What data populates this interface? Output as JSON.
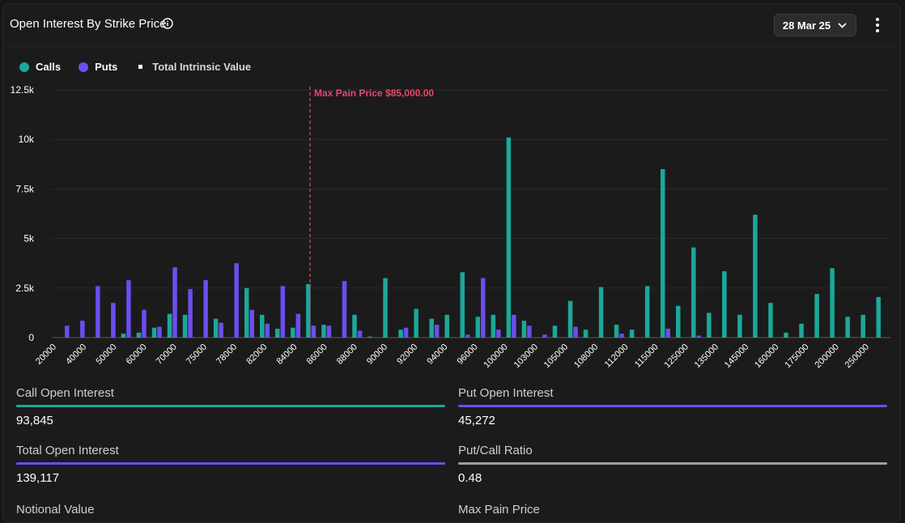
{
  "header": {
    "title": "Open Interest By Strike Price",
    "date_label": "28 Mar 25"
  },
  "colors": {
    "calls": "#1ba89a",
    "puts": "#6a4ef0",
    "max_pain": "#e8456e",
    "ratio_bar": "#a0a0a0"
  },
  "legend": {
    "calls": "Calls",
    "puts": "Puts",
    "tiv": "Total Intrinsic Value"
  },
  "chart_data": {
    "type": "bar",
    "y_ticks": [
      "0",
      "2.5k",
      "5k",
      "7.5k",
      "10k",
      "12.5k"
    ],
    "ylim": [
      0,
      12500
    ],
    "x_tick_labels": [
      "20000",
      "40000",
      "50000",
      "60000",
      "70000",
      "75000",
      "78000",
      "82000",
      "84000",
      "86000",
      "88000",
      "90000",
      "92000",
      "94000",
      "96000",
      "100000",
      "103000",
      "105000",
      "108000",
      "112000",
      "115000",
      "125000",
      "135000",
      "145000",
      "160000",
      "175000",
      "200000",
      "250000"
    ],
    "calls": [
      0,
      0,
      0,
      0,
      200,
      250,
      500,
      1200,
      1150,
      0,
      950,
      0,
      2500,
      1150,
      450,
      500,
      2700,
      650,
      0,
      1150,
      50,
      3000,
      400,
      1450,
      950,
      1150,
      3300,
      1050,
      1150,
      10100,
      850,
      0,
      600,
      1850,
      400,
      2550,
      650,
      400,
      2600,
      8500,
      1600,
      4550,
      1250,
      3350,
      1150,
      6200,
      1750,
      250,
      700,
      2200,
      3500,
      1050,
      1150,
      2050
    ],
    "puts": [
      600,
      850,
      2600,
      1750,
      2900,
      1400,
      550,
      3550,
      2450,
      2900,
      750,
      3750,
      1400,
      700,
      2600,
      1200,
      600,
      600,
      2850,
      350,
      0,
      0,
      500,
      0,
      650,
      0,
      150,
      3000,
      400,
      1150,
      600,
      150,
      0,
      550,
      0,
      0,
      200,
      0,
      0,
      450,
      0,
      100,
      0,
      0,
      0,
      0,
      0,
      0,
      0,
      0,
      0,
      0,
      0,
      0
    ],
    "max_pain_label": "Max Pain Price $85,000.00"
  },
  "stats": {
    "call_oi_label": "Call Open Interest",
    "call_oi_value": "93,845",
    "put_oi_label": "Put Open Interest",
    "put_oi_value": "45,272",
    "total_oi_label": "Total Open Interest",
    "total_oi_value": "139,117",
    "pc_ratio_label": "Put/Call Ratio",
    "pc_ratio_value": "0.48",
    "notional_label": "Notional Value",
    "max_pain_label": "Max Pain Price"
  }
}
